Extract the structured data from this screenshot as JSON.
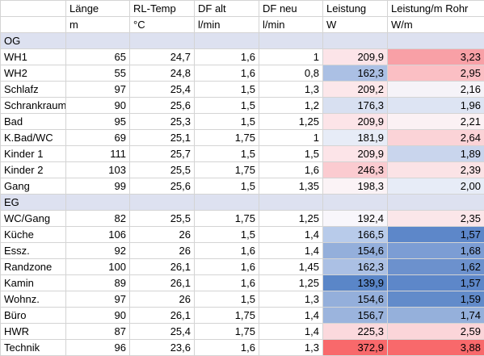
{
  "header": [
    "Länge",
    "RL-Temp",
    "DF alt",
    "DF neu",
    "Leistung",
    "Leistung/m Rohr"
  ],
  "units": [
    "m",
    "°C",
    "l/min",
    "l/min",
    "W",
    "W/m"
  ],
  "sections": [
    {
      "name": "OG",
      "rows": [
        {
          "room": "WH1",
          "laenge": "65",
          "rl_temp": "24,7",
          "df_alt": "1,6",
          "df_neu": "1",
          "leistung": "209,9",
          "leistung_m": "3,23",
          "leistung_color": "#fce4e8",
          "leistung_m_color": "#f8a0a6"
        },
        {
          "room": "WH2",
          "laenge": "55",
          "rl_temp": "24,8",
          "df_alt": "1,6",
          "df_neu": "0,8",
          "leistung": "162,3",
          "leistung_m": "2,95",
          "leistung_color": "#abc0e4",
          "leistung_m_color": "#fbbfc4"
        },
        {
          "room": "Schlafz",
          "laenge": "97",
          "rl_temp": "25,4",
          "df_alt": "1,5",
          "df_neu": "1,3",
          "leistung": "209,2",
          "leistung_m": "2,16",
          "leistung_color": "#fce7ea",
          "leistung_m_color": "#f5f3f8"
        },
        {
          "room": "Schrankraum",
          "laenge": "90",
          "rl_temp": "25,6",
          "df_alt": "1,5",
          "df_neu": "1,2",
          "leistung": "176,3",
          "leistung_m": "1,96",
          "leistung_color": "#d8e0f1",
          "leistung_m_color": "#dde4f3"
        },
        {
          "room": "Bad",
          "laenge": "95",
          "rl_temp": "25,3",
          "df_alt": "1,5",
          "df_neu": "1,25",
          "leistung": "209,9",
          "leistung_m": "2,21",
          "leistung_color": "#fce4e8",
          "leistung_m_color": "#fbf1f4"
        },
        {
          "room": "K.Bad/WC",
          "laenge": "69",
          "rl_temp": "25,1",
          "df_alt": "1,75",
          "df_neu": "1",
          "leistung": "181,9",
          "leistung_m": "2,64",
          "leistung_color": "#e7ecf7",
          "leistung_m_color": "#fbd3d7"
        },
        {
          "room": "Kinder 1",
          "laenge": "111",
          "rl_temp": "25,7",
          "df_alt": "1,5",
          "df_neu": "1,5",
          "leistung": "209,9",
          "leistung_m": "1,89",
          "leistung_color": "#fce4e8",
          "leistung_m_color": "#c9d5ed"
        },
        {
          "room": "Kinder 2",
          "laenge": "103",
          "rl_temp": "25,5",
          "df_alt": "1,75",
          "df_neu": "1,6",
          "leistung": "246,3",
          "leistung_m": "2,39",
          "leistung_color": "#fbcbd0",
          "leistung_m_color": "#fbe3e6"
        },
        {
          "room": "Gang",
          "laenge": "99",
          "rl_temp": "25,6",
          "df_alt": "1,5",
          "df_neu": "1,35",
          "leistung": "198,3",
          "leistung_m": "2,00",
          "leistung_color": "#fbf3f6",
          "leistung_m_color": "#e7ecf7"
        }
      ]
    },
    {
      "name": "EG",
      "rows": [
        {
          "room": "WC/Gang",
          "laenge": "82",
          "rl_temp": "25,5",
          "df_alt": "1,75",
          "df_neu": "1,25",
          "leistung": "192,4",
          "leistung_m": "2,35",
          "leistung_color": "#f8f6fb",
          "leistung_m_color": "#fbe6e9"
        },
        {
          "room": "Küche",
          "laenge": "106",
          "rl_temp": "26",
          "df_alt": "1,5",
          "df_neu": "1,4",
          "leistung": "166,5",
          "leistung_m": "1,57",
          "leistung_color": "#b8cbea",
          "leistung_m_color": "#5d87c9"
        },
        {
          "room": "Essz.",
          "laenge": "92",
          "rl_temp": "26",
          "df_alt": "1,6",
          "df_neu": "1,4",
          "leistung": "154,6",
          "leistung_m": "1,68",
          "leistung_color": "#94afdb",
          "leistung_m_color": "#7c9dd4"
        },
        {
          "room": "Randzone",
          "laenge": "100",
          "rl_temp": "26,1",
          "df_alt": "1,6",
          "df_neu": "1,45",
          "leistung": "162,3",
          "leistung_m": "1,62",
          "leistung_color": "#abc0e4",
          "leistung_m_color": "#6c91cd"
        },
        {
          "room": "Kamin",
          "laenge": "89",
          "rl_temp": "26,1",
          "df_alt": "1,6",
          "df_neu": "1,25",
          "leistung": "139,9",
          "leistung_m": "1,57",
          "leistung_color": "#5a86c8",
          "leistung_m_color": "#5d87c9"
        },
        {
          "room": "Wohnz.",
          "laenge": "97",
          "rl_temp": "26",
          "df_alt": "1,5",
          "df_neu": "1,3",
          "leistung": "154,6",
          "leistung_m": "1,59",
          "leistung_color": "#94afdb",
          "leistung_m_color": "#628bca"
        },
        {
          "room": "Büro",
          "laenge": "90",
          "rl_temp": "26,1",
          "df_alt": "1,75",
          "df_neu": "1,4",
          "leistung": "156,7",
          "leistung_m": "1,74",
          "leistung_color": "#9bb4dd",
          "leistung_m_color": "#95b0db"
        },
        {
          "room": "HWR",
          "laenge": "87",
          "rl_temp": "25,4",
          "df_alt": "1,75",
          "df_neu": "1,4",
          "leistung": "225,3",
          "leistung_m": "2,59",
          "leistung_color": "#fbd9dd",
          "leistung_m_color": "#fbd5d9"
        },
        {
          "room": "Technik",
          "laenge": "96",
          "rl_temp": "23,6",
          "df_alt": "1,6",
          "df_neu": "1,3",
          "leistung": "372,9",
          "leistung_m": "3,88",
          "leistung_color": "#f8696b",
          "leistung_m_color": "#f8696b"
        }
      ]
    }
  ]
}
